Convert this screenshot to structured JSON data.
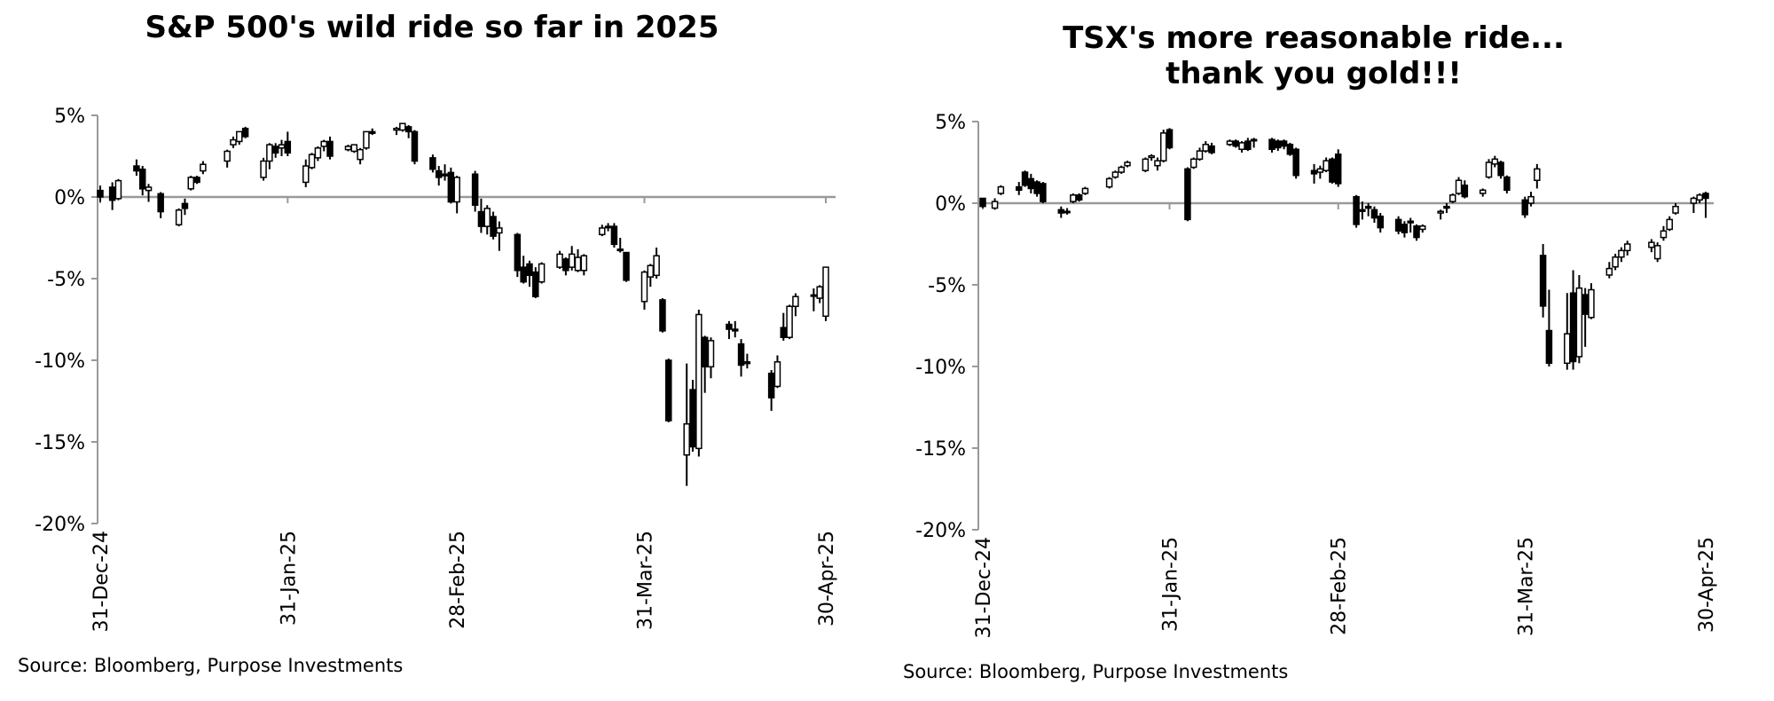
{
  "chart_data": [
    {
      "type": "candlestick",
      "title": "S&P 500's wild ride so far in 2025",
      "source": "Source: Bloomberg, Purpose Investments",
      "up_color": "#ffffff",
      "down_color": "#000000",
      "x": [
        0,
        2,
        3,
        6,
        7,
        8,
        10,
        13,
        14,
        15,
        16,
        17,
        21,
        22,
        23,
        24,
        27,
        28,
        29,
        30,
        31,
        34,
        35,
        36,
        37,
        38,
        41,
        42,
        43,
        44,
        45,
        49,
        50,
        51,
        52,
        55,
        56,
        57,
        58,
        59,
        62,
        63,
        64,
        65,
        66,
        69,
        70,
        71,
        72,
        73,
        76,
        77,
        78,
        79,
        80,
        83,
        84,
        85,
        86,
        87,
        90,
        91,
        92,
        93,
        94,
        97,
        98,
        99,
        100,
        101,
        104,
        105,
        106,
        107,
        111,
        112,
        113,
        114,
        115,
        118,
        119,
        120
      ],
      "open": [
        0.4,
        0.6,
        -0.1,
        1.9,
        1.7,
        0.4,
        0.2,
        -1.7,
        -0.4,
        0.5,
        1.2,
        1.6,
        2.2,
        3.2,
        3.4,
        4.2,
        1.2,
        2.2,
        3.1,
        3.0,
        3.4,
        0.9,
        1.8,
        2.4,
        3.1,
        3.4,
        2.9,
        2.8,
        2.3,
        3.0,
        4.0,
        4.1,
        4.1,
        4.3,
        4.0,
        2.4,
        1.6,
        1.4,
        1.5,
        -0.3,
        1.4,
        -0.9,
        -1.8,
        -1.2,
        -2.2,
        -2.3,
        -4.3,
        -4.1,
        -4.6,
        -5.2,
        -4.3,
        -3.8,
        -4.3,
        -4.5,
        -4.5,
        -2.3,
        -1.8,
        -1.8,
        -3.2,
        -3.4,
        -6.4,
        -4.9,
        -4.8,
        -6.3,
        -10.0,
        -15.8,
        -11.8,
        -15.4,
        -8.6,
        -10.4,
        -7.8,
        -8.1,
        -9.0,
        -10.1,
        -10.8,
        -11.6,
        -8.0,
        -8.6,
        -6.7,
        -6.0,
        -6.2,
        -7.3
      ],
      "high": [
        0.7,
        0.9,
        1.1,
        2.3,
        1.9,
        0.8,
        0.3,
        -0.7,
        -0.1,
        1.3,
        1.3,
        2.2,
        2.9,
        3.7,
        4.0,
        4.3,
        2.4,
        3.3,
        3.3,
        3.5,
        4.0,
        2.3,
        2.7,
        3.1,
        3.5,
        3.7,
        3.2,
        3.2,
        3.0,
        4.0,
        4.2,
        4.3,
        4.5,
        4.4,
        4.1,
        2.6,
        1.9,
        2.0,
        1.8,
        1.3,
        1.6,
        -0.1,
        -0.5,
        -0.9,
        -1.5,
        -2.2,
        -3.6,
        -3.9,
        -4.3,
        -4.0,
        -3.3,
        -3.7,
        -3.0,
        -3.2,
        -3.5,
        -1.7,
        -1.6,
        -1.6,
        -2.5,
        -3.4,
        -4.5,
        -4.1,
        -3.1,
        -6.2,
        -9.9,
        -10.2,
        -11.2,
        -6.9,
        -8.5,
        -8.6,
        -7.6,
        -7.6,
        -8.7,
        -9.6,
        -10.6,
        -9.7,
        -7.1,
        -6.6,
        -5.9,
        -5.6,
        -5.4,
        -4.3
      ],
      "low": [
        -0.3,
        -0.8,
        -0.2,
        1.3,
        0.1,
        -0.3,
        -1.3,
        -1.8,
        -1.1,
        0.4,
        0.8,
        1.4,
        1.8,
        3.0,
        3.2,
        3.6,
        1.0,
        1.7,
        2.4,
        2.5,
        2.5,
        0.6,
        1.7,
        2.2,
        2.8,
        2.3,
        2.8,
        2.7,
        2.0,
        2.9,
        3.8,
        3.8,
        4.0,
        3.6,
        2.0,
        1.5,
        0.7,
        1.0,
        -0.4,
        -1.0,
        -0.9,
        -2.2,
        -2.3,
        -2.6,
        -3.3,
        -4.9,
        -5.3,
        -5.5,
        -6.2,
        -5.3,
        -4.4,
        -4.8,
        -4.5,
        -4.6,
        -4.8,
        -2.4,
        -2.1,
        -3.1,
        -3.4,
        -5.2,
        -6.9,
        -5.5,
        -5.0,
        -8.3,
        -13.8,
        -17.7,
        -15.6,
        -15.9,
        -12.0,
        -11.1,
        -8.7,
        -8.6,
        -11.0,
        -10.5,
        -13.1,
        -11.7,
        -8.8,
        -8.7,
        -7.3,
        -7.0,
        -6.5,
        -7.6
      ],
      "close": [
        0.0,
        -0.2,
        1.0,
        1.6,
        0.5,
        0.6,
        -0.9,
        -0.8,
        -0.7,
        1.2,
        0.9,
        2.0,
        2.8,
        3.5,
        4.0,
        3.7,
        2.2,
        3.2,
        2.7,
        3.2,
        2.7,
        1.9,
        2.6,
        3.0,
        3.4,
        2.5,
        3.1,
        3.2,
        2.9,
        4.0,
        3.9,
        4.2,
        4.5,
        4.0,
        2.2,
        1.7,
        1.2,
        1.3,
        -0.3,
        1.2,
        -0.5,
        -1.8,
        -0.7,
        -2.4,
        -1.9,
        -4.5,
        -5.2,
        -4.8,
        -6.1,
        -4.1,
        -3.5,
        -4.5,
        -3.5,
        -3.7,
        -3.6,
        -1.9,
        -1.8,
        -2.9,
        -3.2,
        -5.1,
        -4.6,
        -4.2,
        -3.6,
        -8.2,
        -13.7,
        -13.9,
        -15.3,
        -7.2,
        -10.4,
        -8.8,
        -8.1,
        -8.2,
        -10.3,
        -10.2,
        -12.3,
        -10.1,
        -8.6,
        -6.7,
        -6.1,
        -6.0,
        -5.5,
        -4.3
      ],
      "xlim": [
        0,
        120
      ],
      "xticks": [
        {
          "value": 0,
          "label": "31-Dec-24"
        },
        {
          "value": 31,
          "label": "31-Jan-25"
        },
        {
          "value": 59,
          "label": "28-Feb-25"
        },
        {
          "value": 90,
          "label": "31-Mar-25"
        },
        {
          "value": 120,
          "label": "30-Apr-25"
        }
      ],
      "ylim": [
        -20,
        5
      ],
      "yticks": [
        {
          "value": 5,
          "label": "5%"
        },
        {
          "value": 0,
          "label": "0%"
        },
        {
          "value": -5,
          "label": "-5%"
        },
        {
          "value": -10,
          "label": "-10%"
        },
        {
          "value": -15,
          "label": "-15%"
        },
        {
          "value": -20,
          "label": "-20%"
        }
      ]
    },
    {
      "type": "candlestick",
      "title": [
        "TSX's more reasonable ride...",
        "thank you gold!!!"
      ],
      "source": "Source: Bloomberg, Purpose Investments",
      "up_color": "#ffffff",
      "down_color": "#000000",
      "x": [
        0,
        2,
        3,
        6,
        7,
        8,
        9,
        10,
        13,
        14,
        15,
        16,
        17,
        21,
        22,
        23,
        24,
        27,
        28,
        29,
        30,
        31,
        34,
        35,
        36,
        37,
        38,
        41,
        42,
        43,
        44,
        45,
        48,
        49,
        50,
        51,
        52,
        55,
        56,
        57,
        58,
        59,
        62,
        63,
        64,
        65,
        66,
        69,
        70,
        71,
        72,
        73,
        76,
        77,
        78,
        79,
        80,
        83,
        84,
        85,
        86,
        87,
        90,
        91,
        92,
        93,
        94,
        97,
        98,
        99,
        100,
        101,
        104,
        105,
        106,
        107,
        111,
        112,
        113,
        114,
        115,
        118,
        119,
        120
      ],
      "open": [
        0.3,
        -0.3,
        0.6,
        1.0,
        1.9,
        1.5,
        1.3,
        1.2,
        -0.4,
        -0.5,
        0.1,
        0.5,
        0.6,
        1.0,
        1.6,
        1.9,
        2.3,
        2.0,
        2.8,
        2.3,
        2.6,
        4.5,
        2.1,
        2.2,
        2.7,
        3.2,
        3.5,
        3.6,
        3.8,
        3.3,
        3.8,
        3.9,
        3.9,
        3.8,
        3.8,
        3.6,
        3.3,
        2.0,
        1.9,
        2.0,
        2.7,
        3.0,
        0.4,
        -0.4,
        -0.2,
        -0.4,
        -0.8,
        -1.0,
        -1.3,
        -1.1,
        -1.4,
        -1.6,
        -0.6,
        -0.2,
        0.1,
        0.6,
        1.1,
        0.6,
        1.6,
        2.4,
        2.5,
        1.6,
        0.2,
        0.0,
        1.4,
        -3.2,
        -7.8,
        -9.8,
        -5.5,
        -9.4,
        -5.6,
        -7.0,
        -4.4,
        -3.9,
        -3.3,
        -2.9,
        -2.7,
        -3.4,
        -2.1,
        -1.6,
        -0.6,
        0.0,
        0.2,
        0.6
      ],
      "high": [
        0.3,
        0.3,
        1.1,
        1.3,
        2.0,
        1.8,
        1.4,
        1.3,
        -0.2,
        -0.3,
        0.6,
        0.6,
        1.0,
        1.6,
        2.0,
        2.3,
        2.6,
        2.8,
        3.0,
        2.8,
        4.5,
        4.6,
        2.2,
        2.8,
        3.4,
        3.8,
        3.7,
        3.9,
        3.9,
        3.8,
        4.0,
        4.0,
        4.0,
        3.9,
        3.9,
        3.7,
        3.4,
        2.4,
        2.3,
        2.8,
        2.8,
        3.3,
        0.5,
        0.1,
        0.0,
        -0.2,
        -0.6,
        -0.8,
        -1.1,
        -0.9,
        -1.3,
        -1.3,
        -0.4,
        0.0,
        0.6,
        1.6,
        1.4,
        0.9,
        2.7,
        2.9,
        2.6,
        1.7,
        0.4,
        0.7,
        2.4,
        -2.5,
        -5.3,
        -5.5,
        -4.1,
        -4.4,
        -5.2,
        -4.9,
        -3.6,
        -3.1,
        -2.7,
        -2.3,
        -2.2,
        -2.4,
        -1.4,
        -0.8,
        0.0,
        0.4,
        0.6,
        0.7
      ],
      "low": [
        -0.3,
        -0.4,
        0.5,
        0.5,
        1.0,
        0.6,
        0.4,
        0.0,
        -0.9,
        -0.7,
        0.0,
        0.1,
        0.5,
        0.9,
        1.5,
        1.8,
        2.2,
        1.9,
        2.6,
        2.0,
        2.5,
        3.3,
        -1.1,
        2.1,
        2.6,
        3.1,
        3.0,
        3.5,
        3.4,
        3.1,
        3.2,
        3.4,
        3.1,
        3.2,
        3.3,
        2.9,
        1.5,
        1.2,
        1.5,
        1.9,
        1.2,
        1.0,
        -1.5,
        -1.0,
        -0.8,
        -1.2,
        -1.8,
        -1.9,
        -2.1,
        -1.8,
        -2.3,
        -1.8,
        -1.0,
        -0.6,
        0.0,
        0.5,
        0.3,
        0.4,
        1.5,
        2.2,
        1.5,
        0.6,
        -0.9,
        -0.2,
        0.9,
        -7.0,
        -10.0,
        -10.2,
        -10.2,
        -9.8,
        -8.8,
        -7.1,
        -4.6,
        -4.1,
        -3.6,
        -3.2,
        -3.0,
        -3.6,
        -2.3,
        -1.7,
        -0.7,
        -0.6,
        0.0,
        -0.9
      ],
      "close": [
        -0.2,
        0.1,
        1.0,
        0.8,
        1.1,
        0.9,
        0.6,
        0.1,
        -0.6,
        -0.5,
        0.5,
        0.2,
        0.9,
        1.5,
        1.9,
        2.2,
        2.5,
        2.7,
        2.9,
        2.6,
        4.3,
        3.4,
        -1.0,
        2.7,
        3.2,
        3.6,
        3.1,
        3.8,
        3.5,
        3.7,
        3.3,
        3.9,
        3.3,
        3.4,
        3.5,
        3.0,
        1.7,
        1.8,
        2.1,
        2.6,
        1.3,
        1.2,
        -1.3,
        -0.5,
        -0.3,
        -0.9,
        -1.5,
        -1.7,
        -1.8,
        -1.2,
        -2.1,
        -1.4,
        -0.5,
        -0.3,
        0.5,
        1.4,
        0.4,
        0.8,
        2.5,
        2.7,
        1.7,
        0.8,
        -0.7,
        0.4,
        2.1,
        -6.3,
        -9.8,
        -8.0,
        -9.7,
        -5.2,
        -6.8,
        -5.3,
        -4.0,
        -3.3,
        -2.9,
        -2.5,
        -2.4,
        -2.6,
        -1.7,
        -1.0,
        -0.2,
        0.3,
        0.5,
        0.3
      ],
      "xlim": [
        0,
        120
      ],
      "xticks": [
        {
          "value": 0,
          "label": "31-Dec-24"
        },
        {
          "value": 31,
          "label": "31-Jan-25"
        },
        {
          "value": 59,
          "label": "28-Feb-25"
        },
        {
          "value": 90,
          "label": "31-Mar-25"
        },
        {
          "value": 120,
          "label": "30-Apr-25"
        }
      ],
      "ylim": [
        -20,
        5
      ],
      "yticks": [
        {
          "value": 5,
          "label": "5%"
        },
        {
          "value": 0,
          "label": "0%"
        },
        {
          "value": -5,
          "label": "-5%"
        },
        {
          "value": -10,
          "label": "-10%"
        },
        {
          "value": -15,
          "label": "-15%"
        },
        {
          "value": -20,
          "label": "-20%"
        }
      ]
    }
  ]
}
